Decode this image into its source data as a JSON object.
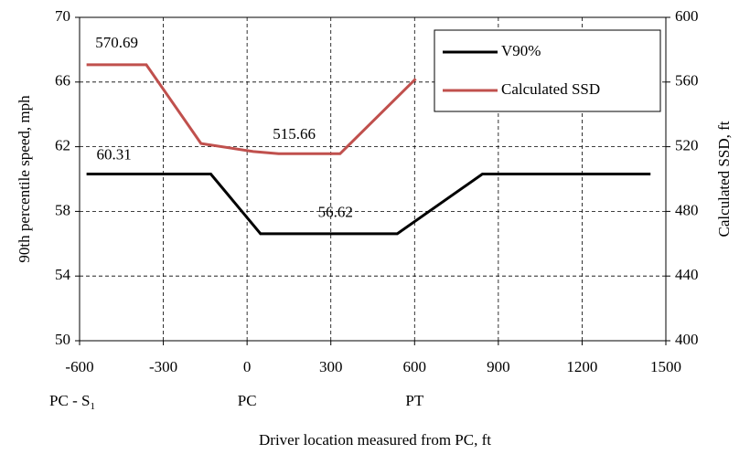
{
  "chart_data": {
    "type": "line",
    "xlabel": "Driver location measured from PC, ft",
    "ylabel": "90th percentile speed, mph",
    "y2label": "Calculated SSD, ft",
    "xlim": [
      -600,
      1500
    ],
    "xticks": [
      -600,
      -300,
      0,
      300,
      600,
      900,
      1200,
      1500
    ],
    "ylim": [
      50,
      70
    ],
    "yticks": [
      50,
      54,
      58,
      62,
      66,
      70
    ],
    "y2lim": [
      400,
      600
    ],
    "y2ticks": [
      400,
      440,
      480,
      520,
      560,
      600
    ],
    "grid": true,
    "legend": "upper right",
    "series": [
      {
        "name": "V90%",
        "color": "#000000",
        "x": [
          -575,
          -130,
          48,
          538,
          843,
          1445
        ],
        "values": [
          60.31,
          60.31,
          56.62,
          56.62,
          60.31,
          60.31
        ],
        "value_labels": [
          "60.31",
          null,
          "56.62",
          null,
          null,
          null
        ]
      },
      {
        "name": "Calculated SSD",
        "color": "#c0504d",
        "axis": "y2",
        "x": [
          -575,
          -361,
          -165,
          22,
          113,
          333,
          604
        ],
        "values": [
          570.69,
          570.69,
          522,
          517,
          515.66,
          515.66,
          562
        ],
        "value_labels": [
          "570.69",
          null,
          null,
          null,
          "515.66",
          null,
          null
        ]
      }
    ],
    "annotations": [
      {
        "text": "PC - S",
        "subscript": "1",
        "x": -600
      },
      {
        "text": "PC",
        "x": 0
      },
      {
        "text": "PT",
        "x": 600
      }
    ]
  }
}
